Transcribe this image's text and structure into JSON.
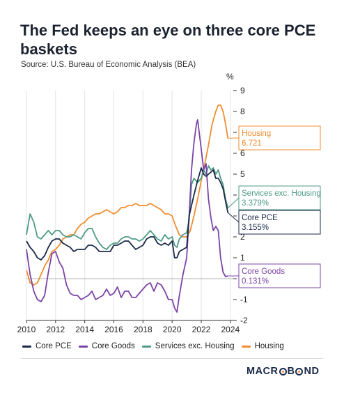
{
  "chart_data": {
    "type": "line",
    "title": "The Fed keeps an eye on three core PCE baskets",
    "subtitle": "Source: U.S. Bureau of Economic Analysis (BEA)",
    "ylabel": "%",
    "ylim": [
      -2,
      9
    ],
    "xlim": [
      2010,
      2024.2
    ],
    "y_ticks": [
      "-2",
      "-1",
      "0",
      "1",
      "2",
      "3",
      "4",
      "5",
      "6",
      "7",
      "8",
      "9"
    ],
    "x_ticks": [
      "2010",
      "2012",
      "2014",
      "2016",
      "2018",
      "2020",
      "2022",
      "2024"
    ],
    "grid": "vertical",
    "legend_position": "bottom",
    "series": [
      {
        "name": "Core PCE",
        "color": "#1b2a4a",
        "end_label": "Core PCE",
        "end_value": "3.155%",
        "x": [
          2010.0,
          2010.25,
          2010.5,
          2010.75,
          2011.0,
          2011.25,
          2011.5,
          2011.75,
          2012.0,
          2012.25,
          2012.5,
          2012.75,
          2013.0,
          2013.25,
          2013.5,
          2013.75,
          2014.0,
          2014.25,
          2014.5,
          2014.75,
          2015.0,
          2015.25,
          2015.5,
          2015.75,
          2016.0,
          2016.25,
          2016.5,
          2016.75,
          2017.0,
          2017.25,
          2017.5,
          2017.75,
          2018.0,
          2018.25,
          2018.5,
          2018.75,
          2019.0,
          2019.25,
          2019.5,
          2019.75,
          2020.0,
          2020.17,
          2020.33,
          2020.5,
          2020.75,
          2021.0,
          2021.17,
          2021.33,
          2021.5,
          2021.75,
          2022.0,
          2022.17,
          2022.33,
          2022.5,
          2022.67,
          2022.83,
          2023.0,
          2023.17,
          2023.33,
          2023.5,
          2023.67,
          2023.83
        ],
        "y": [
          1.8,
          1.5,
          1.3,
          1.0,
          0.9,
          1.1,
          1.5,
          1.8,
          1.9,
          1.9,
          1.7,
          1.6,
          1.5,
          1.3,
          1.4,
          1.4,
          1.4,
          1.6,
          1.6,
          1.5,
          1.3,
          1.3,
          1.3,
          1.3,
          1.6,
          1.6,
          1.7,
          1.8,
          1.8,
          1.6,
          1.4,
          1.5,
          1.6,
          1.9,
          2.0,
          2.0,
          1.7,
          1.6,
          1.7,
          1.6,
          1.8,
          1.0,
          1.0,
          1.3,
          1.4,
          1.5,
          3.0,
          3.5,
          4.0,
          4.7,
          5.3,
          5.0,
          4.9,
          5.0,
          5.1,
          5.2,
          4.8,
          4.8,
          4.6,
          4.3,
          3.7,
          3.155
        ]
      },
      {
        "name": "Core Goods",
        "color": "#7b44a8",
        "end_label": "Core Goods",
        "end_value": "0.131%",
        "x": [
          2010.0,
          2010.25,
          2010.5,
          2010.75,
          2011.0,
          2011.25,
          2011.5,
          2011.75,
          2012.0,
          2012.25,
          2012.5,
          2012.75,
          2013.0,
          2013.25,
          2013.5,
          2013.75,
          2014.0,
          2014.25,
          2014.5,
          2014.75,
          2015.0,
          2015.25,
          2015.5,
          2015.75,
          2016.0,
          2016.25,
          2016.5,
          2016.75,
          2017.0,
          2017.25,
          2017.5,
          2017.75,
          2018.0,
          2018.25,
          2018.5,
          2018.75,
          2019.0,
          2019.25,
          2019.5,
          2019.75,
          2020.0,
          2020.17,
          2020.33,
          2020.5,
          2020.75,
          2021.0,
          2021.17,
          2021.33,
          2021.5,
          2021.67,
          2021.75,
          2022.0,
          2022.17,
          2022.33,
          2022.5,
          2022.67,
          2022.83,
          2023.0,
          2023.17,
          2023.33,
          2023.5,
          2023.67,
          2023.83
        ],
        "y": [
          1.4,
          0.2,
          -0.6,
          -1.0,
          -1.1,
          -0.8,
          0.3,
          1.2,
          1.3,
          0.8,
          0.5,
          -0.3,
          -0.7,
          -0.8,
          -0.8,
          -1.0,
          -0.9,
          -0.8,
          -0.6,
          -1.0,
          -0.9,
          -0.8,
          -0.5,
          -0.8,
          -0.7,
          -0.4,
          -0.9,
          -0.6,
          -0.6,
          -0.9,
          -0.9,
          -0.7,
          -0.5,
          -0.3,
          -0.2,
          -0.6,
          -0.2,
          -0.3,
          -0.6,
          -1.0,
          -1.0,
          -1.4,
          -1.6,
          -0.8,
          0.2,
          1.0,
          3.0,
          5.2,
          6.5,
          7.4,
          7.6,
          6.2,
          5.2,
          5.5,
          3.8,
          2.9,
          2.3,
          2.5,
          2.3,
          1.0,
          0.3,
          0.1,
          0.131
        ]
      },
      {
        "name": "Services exc. Housing",
        "color": "#4f9a86",
        "end_label": "Services exc. Housing",
        "end_value": "3.379%",
        "x": [
          2010.0,
          2010.25,
          2010.5,
          2010.75,
          2011.0,
          2011.25,
          2011.5,
          2011.75,
          2012.0,
          2012.25,
          2012.5,
          2012.75,
          2013.0,
          2013.25,
          2013.5,
          2013.75,
          2014.0,
          2014.25,
          2014.5,
          2014.75,
          2015.0,
          2015.25,
          2015.5,
          2015.75,
          2016.0,
          2016.25,
          2016.5,
          2016.75,
          2017.0,
          2017.25,
          2017.5,
          2017.75,
          2018.0,
          2018.25,
          2018.5,
          2018.75,
          2019.0,
          2019.25,
          2019.5,
          2019.75,
          2020.0,
          2020.17,
          2020.33,
          2020.5,
          2020.75,
          2021.0,
          2021.17,
          2021.33,
          2021.5,
          2021.75,
          2022.0,
          2022.17,
          2022.33,
          2022.5,
          2022.67,
          2022.83,
          2023.0,
          2023.17,
          2023.33,
          2023.5,
          2023.67,
          2023.83
        ],
        "y": [
          2.1,
          3.1,
          2.7,
          2.0,
          1.9,
          2.1,
          2.3,
          2.1,
          2.3,
          2.3,
          2.1,
          2.0,
          2.0,
          2.1,
          2.0,
          1.9,
          2.2,
          2.4,
          2.4,
          2.0,
          1.7,
          1.5,
          1.4,
          1.6,
          1.7,
          1.7,
          1.9,
          2.0,
          2.0,
          1.9,
          1.9,
          1.8,
          1.9,
          2.1,
          2.3,
          2.1,
          1.9,
          1.8,
          2.1,
          1.9,
          2.0,
          1.6,
          1.5,
          1.9,
          2.1,
          2.2,
          2.8,
          4.5,
          4.8,
          4.6,
          4.8,
          5.2,
          5.0,
          5.4,
          5.2,
          5.3,
          5.0,
          5.2,
          4.8,
          4.5,
          3.8,
          3.379
        ]
      },
      {
        "name": "Housing",
        "color": "#ef8d2f",
        "end_label": "Housing",
        "end_value": "6.721",
        "x": [
          2010.0,
          2010.25,
          2010.5,
          2010.75,
          2011.0,
          2011.25,
          2011.5,
          2011.75,
          2012.0,
          2012.25,
          2012.5,
          2012.75,
          2013.0,
          2013.25,
          2013.5,
          2013.75,
          2014.0,
          2014.25,
          2014.5,
          2014.75,
          2015.0,
          2015.25,
          2015.5,
          2015.75,
          2016.0,
          2016.25,
          2016.5,
          2016.75,
          2017.0,
          2017.25,
          2017.5,
          2017.75,
          2018.0,
          2018.25,
          2018.5,
          2018.75,
          2019.0,
          2019.25,
          2019.5,
          2019.75,
          2020.0,
          2020.25,
          2020.5,
          2020.75,
          2021.0,
          2021.25,
          2021.5,
          2021.75,
          2022.0,
          2022.25,
          2022.5,
          2022.75,
          2023.0,
          2023.17,
          2023.33,
          2023.5,
          2023.67,
          2023.83
        ],
        "y": [
          0.4,
          -0.2,
          -0.3,
          -0.2,
          0.2,
          0.6,
          0.9,
          1.3,
          1.4,
          1.6,
          1.9,
          2.0,
          2.1,
          2.1,
          2.4,
          2.6,
          2.7,
          2.9,
          3.0,
          3.1,
          3.1,
          3.2,
          3.3,
          3.2,
          3.1,
          3.2,
          3.4,
          3.4,
          3.5,
          3.5,
          3.6,
          3.5,
          3.5,
          3.5,
          3.6,
          3.5,
          3.4,
          3.3,
          3.1,
          3.1,
          3.0,
          2.5,
          2.1,
          2.0,
          2.0,
          2.3,
          3.0,
          3.8,
          4.7,
          5.5,
          6.4,
          7.4,
          8.0,
          8.3,
          8.3,
          8.0,
          7.4,
          6.721
        ]
      }
    ]
  },
  "legend": {
    "items": [
      "Core PCE",
      "Core Goods",
      "Services exc. Housing",
      "Housing"
    ]
  },
  "branding": {
    "logo_text_a": "MACR",
    "logo_text_b": "B",
    "logo_text_c": "ND"
  }
}
